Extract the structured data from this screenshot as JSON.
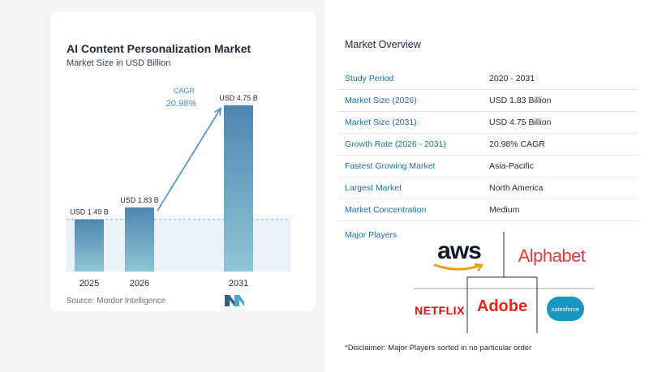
{
  "header": {
    "title": "AI Content Personalization Market",
    "subtitle": "Market Size in USD Billion"
  },
  "chart_data": {
    "type": "bar",
    "title": "AI Content Personalization Market",
    "subtitle": "Market Size in USD Billion",
    "categories": [
      "2025",
      "2026",
      "2031"
    ],
    "values": [
      1.49,
      1.83,
      4.75
    ],
    "data_labels": [
      "USD 1.49 B",
      "USD 1.83 B",
      "USD 4.75 B"
    ],
    "cagr_label": "CAGR",
    "cagr_value": "20.98%",
    "colors": {
      "bar_top": "#4f86b0",
      "bar_bottom": "#8fc5d6",
      "accent": "#4a8fc4"
    }
  },
  "source": "Source:  Mordor Intelligence",
  "overview": {
    "title": "Market Overview",
    "rows": [
      {
        "label": "Study Period",
        "value": "2020 - 2031"
      },
      {
        "label": "Market Size (2026)",
        "value": "USD 1.83 Billion"
      },
      {
        "label": "Market Size (2031)",
        "value": "USD 4.75 Billion"
      },
      {
        "label": "Growth Rate (2026 - 2031)",
        "value": "20.98% CAGR"
      },
      {
        "label": "Fastest Growing Market",
        "value": "Asia-Pacific"
      },
      {
        "label": "Largest Market",
        "value": "North America"
      },
      {
        "label": "Market Concentration",
        "value": "Medium"
      }
    ]
  },
  "players": {
    "label": "Major Players",
    "logos": {
      "aws": "aws",
      "alphabet": "Alphabet",
      "netflix": "NETFLIX",
      "adobe": "Adobe",
      "salesforce": "salesforce"
    }
  },
  "disclaimer": "*Disclaimer: Major Players sorted in no particular order"
}
